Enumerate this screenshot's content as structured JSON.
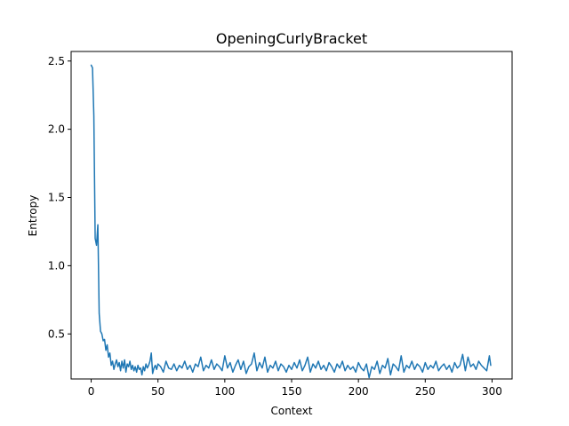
{
  "chart_data": {
    "type": "line",
    "title": "OpeningCurlyBracket",
    "xlabel": "Context",
    "ylabel": "Entropy",
    "xlim": [
      -15,
      315
    ],
    "ylim": [
      0.17,
      2.57
    ],
    "xticks": [
      0,
      50,
      100,
      150,
      200,
      250,
      300
    ],
    "yticks": [
      0.5,
      1.0,
      1.5,
      2.0,
      2.5
    ],
    "xtick_labels": [
      "0",
      "50",
      "100",
      "150",
      "200",
      "250",
      "300"
    ],
    "ytick_labels": [
      "0.5",
      "1.0",
      "1.5",
      "2.0",
      "2.5"
    ],
    "grid": false,
    "series": [
      {
        "color": "#1f77b4",
        "x": [
          0,
          1,
          2,
          3,
          4,
          5,
          6,
          7,
          8,
          9,
          10,
          11,
          12,
          13,
          14,
          15,
          16,
          17,
          18,
          19,
          20,
          21,
          22,
          23,
          24,
          25,
          26,
          27,
          28,
          29,
          30,
          31,
          32,
          33,
          34,
          35,
          36,
          37,
          38,
          39,
          40,
          41,
          42,
          43,
          44,
          45,
          46,
          47,
          48,
          49,
          50,
          52,
          54,
          56,
          58,
          60,
          62,
          64,
          66,
          68,
          70,
          72,
          74,
          76,
          78,
          80,
          82,
          84,
          86,
          88,
          90,
          92,
          94,
          96,
          98,
          100,
          102,
          104,
          106,
          108,
          110,
          112,
          114,
          116,
          118,
          120,
          122,
          124,
          126,
          128,
          130,
          132,
          134,
          136,
          138,
          140,
          142,
          144,
          146,
          148,
          150,
          152,
          154,
          156,
          158,
          160,
          162,
          164,
          166,
          168,
          170,
          172,
          174,
          176,
          178,
          180,
          182,
          184,
          186,
          188,
          190,
          192,
          194,
          196,
          198,
          200,
          202,
          204,
          206,
          208,
          210,
          212,
          214,
          216,
          218,
          220,
          222,
          224,
          226,
          228,
          230,
          232,
          234,
          236,
          238,
          240,
          242,
          244,
          246,
          248,
          250,
          252,
          254,
          256,
          258,
          260,
          262,
          264,
          266,
          268,
          270,
          272,
          274,
          276,
          278,
          280,
          282,
          284,
          286,
          288,
          290,
          292,
          294,
          296,
          298,
          299
        ],
        "y": [
          2.47,
          2.45,
          2.1,
          1.2,
          1.15,
          1.3,
          0.65,
          0.52,
          0.5,
          0.45,
          0.46,
          0.38,
          0.42,
          0.33,
          0.36,
          0.27,
          0.3,
          0.24,
          0.28,
          0.31,
          0.26,
          0.29,
          0.23,
          0.3,
          0.25,
          0.31,
          0.22,
          0.28,
          0.26,
          0.3,
          0.24,
          0.27,
          0.23,
          0.26,
          0.22,
          0.27,
          0.24,
          0.25,
          0.2,
          0.26,
          0.23,
          0.28,
          0.25,
          0.27,
          0.3,
          0.36,
          0.21,
          0.25,
          0.27,
          0.24,
          0.28,
          0.26,
          0.22,
          0.3,
          0.25,
          0.24,
          0.28,
          0.23,
          0.27,
          0.25,
          0.3,
          0.24,
          0.27,
          0.22,
          0.28,
          0.26,
          0.33,
          0.23,
          0.27,
          0.25,
          0.31,
          0.24,
          0.28,
          0.26,
          0.23,
          0.34,
          0.25,
          0.29,
          0.22,
          0.27,
          0.31,
          0.24,
          0.3,
          0.21,
          0.26,
          0.28,
          0.36,
          0.23,
          0.29,
          0.25,
          0.33,
          0.22,
          0.27,
          0.25,
          0.3,
          0.23,
          0.28,
          0.26,
          0.22,
          0.27,
          0.24,
          0.29,
          0.25,
          0.31,
          0.23,
          0.27,
          0.33,
          0.22,
          0.28,
          0.25,
          0.3,
          0.24,
          0.27,
          0.23,
          0.29,
          0.26,
          0.22,
          0.28,
          0.25,
          0.3,
          0.23,
          0.27,
          0.24,
          0.26,
          0.22,
          0.29,
          0.25,
          0.23,
          0.28,
          0.18,
          0.26,
          0.24,
          0.3,
          0.21,
          0.27,
          0.25,
          0.32,
          0.2,
          0.28,
          0.26,
          0.23,
          0.34,
          0.22,
          0.27,
          0.25,
          0.3,
          0.24,
          0.28,
          0.26,
          0.22,
          0.29,
          0.24,
          0.27,
          0.25,
          0.3,
          0.23,
          0.26,
          0.28,
          0.24,
          0.27,
          0.22,
          0.29,
          0.25,
          0.27,
          0.35,
          0.23,
          0.33,
          0.26,
          0.28,
          0.24,
          0.3,
          0.27,
          0.25,
          0.23,
          0.34,
          0.27
        ]
      }
    ]
  }
}
